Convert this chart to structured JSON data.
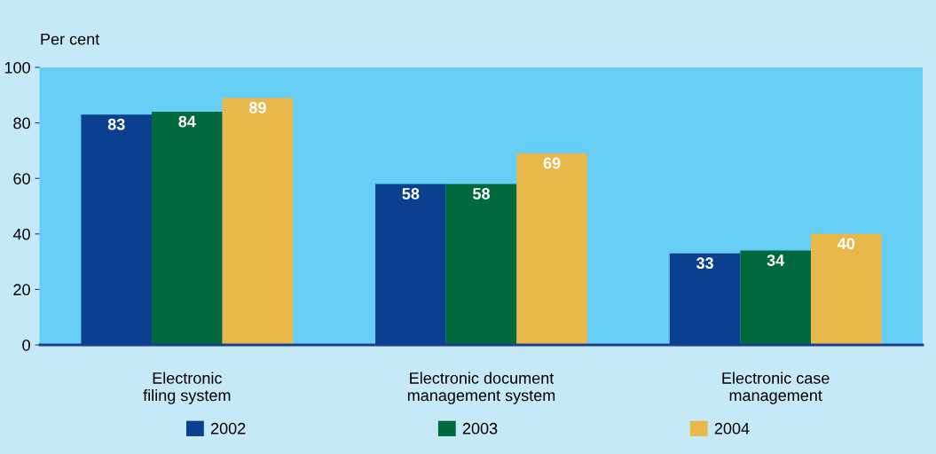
{
  "chart_data": {
    "type": "bar",
    "ylabel": "Per cent",
    "categories": [
      "Electronic\nfiling system",
      "Electronic document\nmanagement system",
      "Electronic case\nmanagement"
    ],
    "series": [
      {
        "name": "2002",
        "color": "#0b3f8f",
        "values": [
          83,
          58,
          33
        ]
      },
      {
        "name": "2003",
        "color": "#006a3c",
        "values": [
          84,
          58,
          34
        ]
      },
      {
        "name": "2004",
        "color": "#e8b84a",
        "values": [
          89,
          69,
          40
        ]
      }
    ],
    "ylim": [
      0,
      100
    ],
    "yticks": [
      0,
      20,
      40,
      60,
      80,
      100
    ],
    "data_labels": true,
    "grid": false,
    "legend": "bottom"
  }
}
